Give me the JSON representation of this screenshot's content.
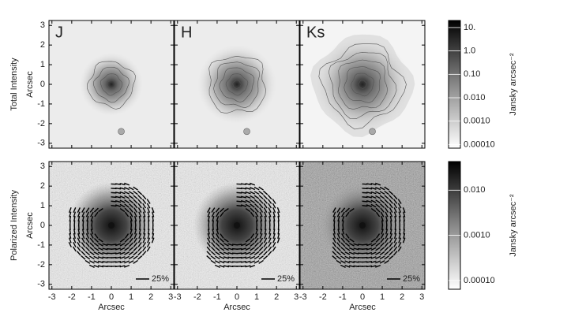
{
  "chart_data": {
    "type": "image-grid",
    "columns": [
      "J",
      "H",
      "Ks"
    ],
    "rows": [
      {
        "label": "Total Intensity",
        "colorbar": {
          "lim": [
            7e-05,
            20
          ],
          "ticks": [
            {
              "value": 10,
              "label": "10."
            },
            {
              "value": 1,
              "label": "1.0"
            },
            {
              "value": 0.1,
              "label": "0.10"
            },
            {
              "value": 0.01,
              "label": "0.010"
            },
            {
              "value": 0.001,
              "label": "0.0010"
            },
            {
              "value": 0.0001,
              "label": "0.00010"
            }
          ]
        }
      },
      {
        "label": "Polarized Intensity",
        "colorbar": {
          "lim": [
            6.4e-05,
            0.043
          ],
          "ticks": [
            {
              "value": 0.01,
              "label": "0.010"
            },
            {
              "value": 0.001,
              "label": "0.0010"
            },
            {
              "value": 0.0001,
              "label": "0.00010"
            }
          ]
        }
      }
    ],
    "colorbar_label": "Jansky arcsec⁻²",
    "colorbar_log_scale": true,
    "xlabel": "Arcsec",
    "ylabel": "Arcsec",
    "xlim": [
      -3.15,
      3.15
    ],
    "ylim": [
      -3.25,
      3.25
    ],
    "xticks": [
      -3,
      -2,
      -1,
      0,
      1,
      2,
      3
    ],
    "yticks": [
      -3,
      -2,
      -1,
      0,
      1,
      2,
      3
    ],
    "scale_bar_label": "25%"
  }
}
